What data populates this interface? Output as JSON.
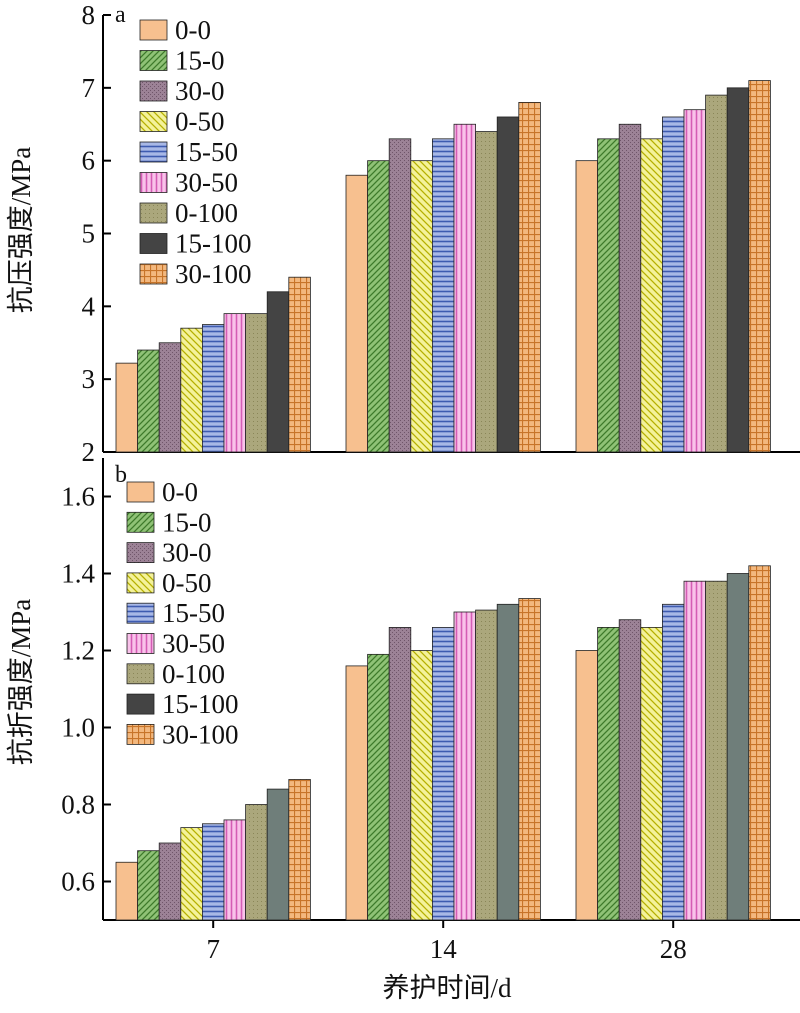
{
  "colors": {
    "0-0": "#f7c08f",
    "15-0": "#8fc276",
    "30-0": "#9c8296",
    "0-50": "#f2f07e",
    "15-50": "#8ea0d6",
    "30-50": "#f3a6dc",
    "0-100": "#aba77c",
    "15-100": "#444444",
    "30-100": "#f1b16f"
  },
  "chart_data": [
    {
      "panel": "a",
      "type": "bar",
      "ylabel": "抗压强度/MPa",
      "xlabel": "",
      "ylim": [
        2,
        8
      ],
      "yticks": [
        2,
        3,
        4,
        5,
        6,
        7,
        8
      ],
      "categories": [
        "7",
        "14",
        "28"
      ],
      "legend_position": "top-left",
      "grid": false,
      "series": [
        {
          "name": "0-0",
          "values": [
            3.22,
            5.8,
            6.0
          ]
        },
        {
          "name": "15-0",
          "values": [
            3.4,
            6.0,
            6.3
          ]
        },
        {
          "name": "30-0",
          "values": [
            3.5,
            6.3,
            6.5
          ]
        },
        {
          "name": "0-50",
          "values": [
            3.7,
            6.0,
            6.3
          ]
        },
        {
          "name": "15-50",
          "values": [
            3.75,
            6.3,
            6.6
          ]
        },
        {
          "name": "30-50",
          "values": [
            3.9,
            6.5,
            6.7
          ]
        },
        {
          "name": "0-100",
          "values": [
            3.9,
            6.4,
            6.9
          ]
        },
        {
          "name": "15-100",
          "values": [
            4.2,
            6.6,
            7.0
          ]
        },
        {
          "name": "30-100",
          "values": [
            4.4,
            6.8,
            7.1
          ]
        }
      ]
    },
    {
      "panel": "b",
      "type": "bar",
      "ylabel": "抗折强度/MPa",
      "xlabel": "养护时间/d",
      "ylim": [
        0.5,
        1.7
      ],
      "yticks": [
        "0.6",
        "0.8",
        "1.0",
        "1.2",
        "1.4",
        "1.6"
      ],
      "categories": [
        "7",
        "14",
        "28"
      ],
      "legend_position": "top-left",
      "grid": false,
      "series": [
        {
          "name": "0-0",
          "values": [
            0.65,
            1.16,
            1.2
          ]
        },
        {
          "name": "15-0",
          "values": [
            0.68,
            1.19,
            1.26
          ]
        },
        {
          "name": "30-0",
          "values": [
            0.7,
            1.26,
            1.28
          ]
        },
        {
          "name": "0-50",
          "values": [
            0.74,
            1.2,
            1.26
          ]
        },
        {
          "name": "15-50",
          "values": [
            0.75,
            1.26,
            1.32
          ]
        },
        {
          "name": "30-50",
          "values": [
            0.76,
            1.3,
            1.38
          ]
        },
        {
          "name": "0-100",
          "values": [
            0.8,
            1.305,
            1.38
          ]
        },
        {
          "name": "15-100",
          "values": [
            0.84,
            1.32,
            1.4
          ]
        },
        {
          "name": "30-100",
          "values": [
            0.865,
            1.335,
            1.42
          ]
        }
      ]
    }
  ]
}
